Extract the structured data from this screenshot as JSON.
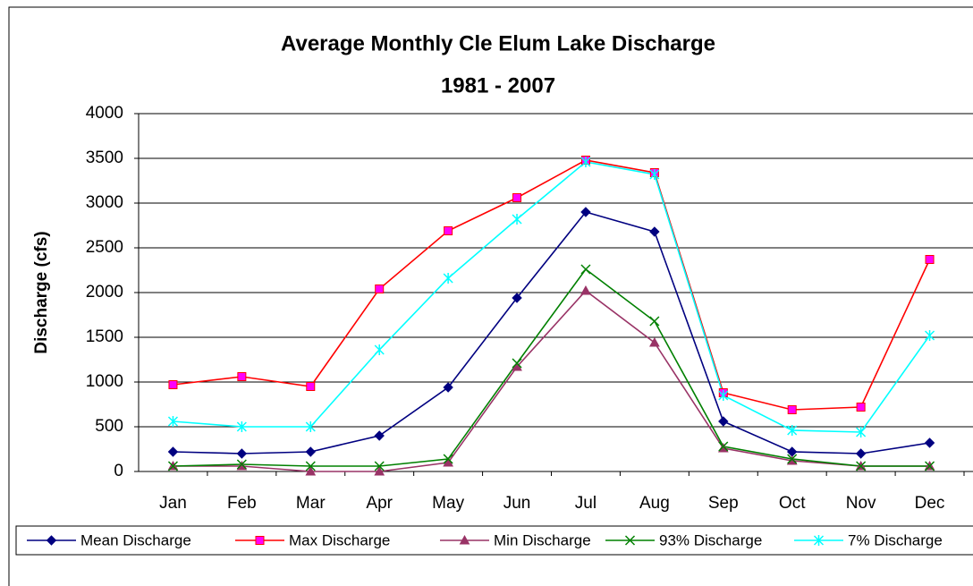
{
  "chart_data": {
    "type": "line",
    "title": "Average Monthly Cle Elum Lake Discharge",
    "subtitle": "1981 - 2007",
    "y_label": "Discharge (cfs)",
    "categories": [
      "Jan",
      "Feb",
      "Mar",
      "Apr",
      "May",
      "Jun",
      "Jul",
      "Aug",
      "Sep",
      "Oct",
      "Nov",
      "Dec"
    ],
    "series": [
      {
        "name": "Mean Discharge",
        "color": "#000080",
        "marker": "diamond",
        "marker_color": "#000080",
        "values": [
          220,
          200,
          220,
          400,
          940,
          1940,
          2900,
          2680,
          560,
          220,
          200,
          320
        ]
      },
      {
        "name": "Max Discharge",
        "color": "#ff0000",
        "marker": "square",
        "marker_color": "#ff00ff",
        "values": [
          970,
          1060,
          950,
          2040,
          2690,
          3060,
          3480,
          3340,
          880,
          690,
          720,
          2370
        ]
      },
      {
        "name": "Min Discharge",
        "color": "#993366",
        "marker": "triangle",
        "marker_color": "#993366",
        "values": [
          60,
          60,
          0,
          0,
          100,
          1170,
          2020,
          1440,
          260,
          120,
          60,
          60
        ]
      },
      {
        "name": "93% Discharge",
        "color": "#008000",
        "marker": "x",
        "marker_color": "#008000",
        "values": [
          60,
          80,
          60,
          60,
          140,
          1210,
          2260,
          1680,
          280,
          140,
          60,
          60
        ]
      },
      {
        "name": "7% Discharge",
        "color": "#00ffff",
        "marker": "star",
        "marker_color": "#00ffff",
        "values": [
          560,
          500,
          500,
          1360,
          2160,
          2820,
          3460,
          3320,
          850,
          460,
          440,
          1520
        ]
      }
    ],
    "ylim": [
      0,
      4000
    ],
    "yticks": [
      0,
      500,
      1000,
      1500,
      2000,
      2500,
      3000,
      3500,
      4000
    ],
    "grid": true,
    "legend": "bottom"
  }
}
